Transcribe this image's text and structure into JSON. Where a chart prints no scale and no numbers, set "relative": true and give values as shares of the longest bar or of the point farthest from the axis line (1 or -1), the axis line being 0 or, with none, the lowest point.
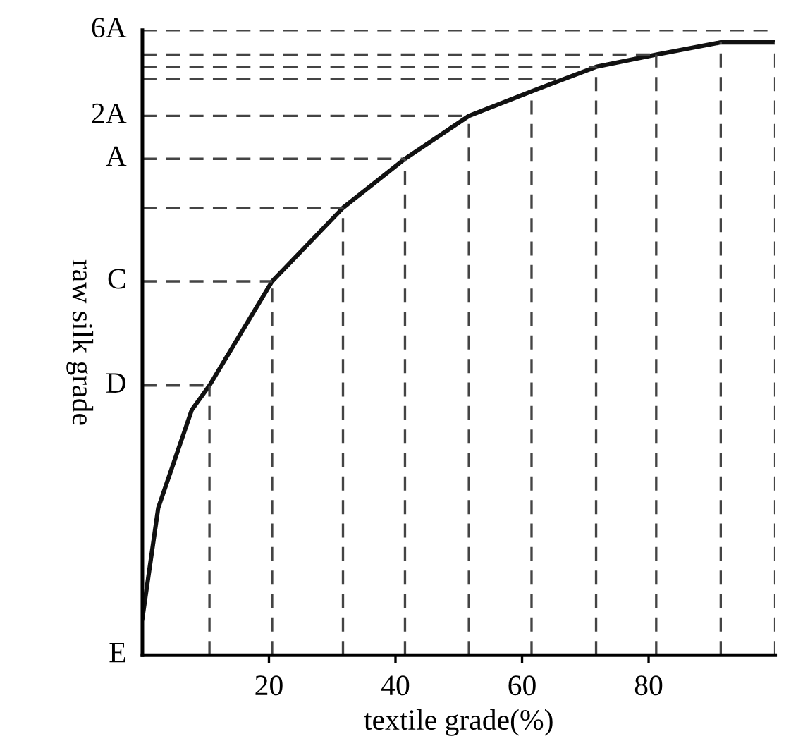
{
  "chart_data": {
    "type": "line",
    "xlabel": "textile grade(%)",
    "ylabel": "raw silk grade",
    "relative": true,
    "xlim": [
      0,
      100
    ],
    "xticks": [
      20,
      40,
      60,
      80
    ],
    "grid": false,
    "legend": false,
    "marker": "none",
    "line_style": "solid",
    "annotations": [
      "E"
    ],
    "series": [
      {
        "color": "#111111",
        "x": [
          0,
          2.5,
          7.8,
          10.6,
          20.5,
          31.7,
          41.5,
          51.6,
          61.5,
          71.7,
          81.2,
          91.4,
          100
        ],
        "values": [
          0.06,
          0.24,
          0.4,
          0.44,
          0.61,
          0.73,
          0.81,
          0.88,
          0.92,
          0.96,
          0.98,
          1,
          1
        ]
      }
    ],
    "ref_lines": [
      {
        "axis": "x",
        "value": 10.6,
        "color": "#444444",
        "line_style": "dashed"
      },
      {
        "axis": "x",
        "value": 20.5,
        "color": "#444444",
        "line_style": "dashed"
      },
      {
        "axis": "x",
        "value": 31.7,
        "color": "#444444",
        "line_style": "dashed"
      },
      {
        "axis": "x",
        "value": 41.5,
        "color": "#444444",
        "line_style": "dashed"
      },
      {
        "axis": "x",
        "value": 51.6,
        "color": "#444444",
        "line_style": "dashed"
      },
      {
        "axis": "x",
        "value": 61.5,
        "color": "#444444",
        "line_style": "dashed"
      },
      {
        "axis": "x",
        "value": 71.7,
        "color": "#444444",
        "line_style": "dashed"
      },
      {
        "axis": "x",
        "value": 81.2,
        "color": "#444444",
        "line_style": "dashed"
      },
      {
        "axis": "x",
        "value": 91.4,
        "color": "#444444",
        "line_style": "dashed"
      },
      {
        "axis": "x",
        "value": 100,
        "color": "#444444",
        "line_style": "dashed"
      },
      {
        "axis": "y",
        "value": 0.44,
        "label": "D",
        "color": "#444444",
        "line_style": "dashed"
      },
      {
        "axis": "y",
        "value": 0.61,
        "label": "C",
        "color": "#444444",
        "line_style": "dashed"
      },
      {
        "axis": "y",
        "value": 0.73,
        "color": "#444444",
        "line_style": "dashed"
      },
      {
        "axis": "y",
        "value": 0.81,
        "label": "A",
        "color": "#444444",
        "line_style": "dashed"
      },
      {
        "axis": "y",
        "value": 0.88,
        "label": "2A",
        "color": "#444444",
        "line_style": "dashed"
      },
      {
        "axis": "y",
        "value": 0.94,
        "color": "#444444",
        "line_style": "dashed"
      },
      {
        "axis": "y",
        "value": 0.96,
        "color": "#444444",
        "line_style": "dashed"
      },
      {
        "axis": "y",
        "value": 0.98,
        "color": "#444444",
        "line_style": "dashed"
      },
      {
        "axis": "y",
        "value": 1.02,
        "label": "6A",
        "color": "#444444",
        "line_style": "dashed"
      }
    ]
  }
}
